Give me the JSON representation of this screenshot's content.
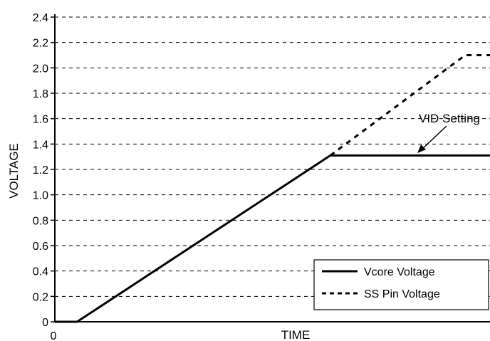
{
  "chart_data": {
    "type": "line",
    "xlabel": "TIME",
    "ylabel": "VOLTAGE",
    "x_tick_labels": [
      "0"
    ],
    "xlim": [
      0,
      100
    ],
    "ylim": [
      0,
      2.4
    ],
    "y_ticks": [
      {
        "value": 0,
        "label": "0"
      },
      {
        "value": 0.2,
        "label": "0.2"
      },
      {
        "value": 0.4,
        "label": "0.4"
      },
      {
        "value": 0.6,
        "label": "0.6"
      },
      {
        "value": 0.8,
        "label": "0.8"
      },
      {
        "value": 1.0,
        "label": "1.0"
      },
      {
        "value": 1.2,
        "label": "1.2"
      },
      {
        "value": 1.4,
        "label": "1.4"
      },
      {
        "value": 1.6,
        "label": "1.6"
      },
      {
        "value": 1.8,
        "label": "1.8"
      },
      {
        "value": 2.0,
        "label": "2.0"
      },
      {
        "value": 2.2,
        "label": "2.2"
      },
      {
        "value": 2.4,
        "label": "2.4"
      }
    ],
    "grid": "horizontal-dashed",
    "legend_position": "bottom-right",
    "series": [
      {
        "name": "Vcore Voltage",
        "style": "solid",
        "points": [
          [
            0,
            0
          ],
          [
            5.1,
            0
          ],
          [
            63.3,
            1.31
          ],
          [
            100,
            1.31
          ]
        ]
      },
      {
        "name": "SS Pin Voltage",
        "style": "dashed",
        "points": [
          [
            63.3,
            1.31
          ],
          [
            94.3,
            2.1
          ],
          [
            100,
            2.1
          ]
        ]
      }
    ],
    "annotations": [
      {
        "text": "VID Setting",
        "arrow_to": [
          81.5,
          1.32
        ]
      }
    ]
  }
}
